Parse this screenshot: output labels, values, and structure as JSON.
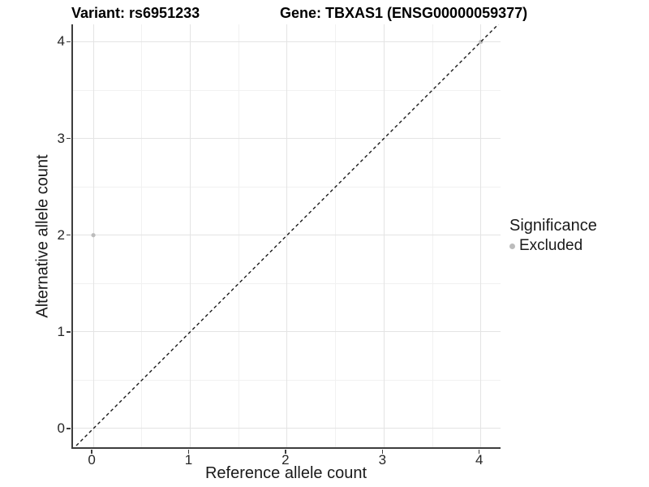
{
  "header": {
    "variant_title": "Variant: rs6951233",
    "gene_title": "Gene: TBXAS1 (ENSG00000059377)"
  },
  "axes": {
    "x_label": "Reference allele count",
    "y_label": "Alternative allele count",
    "x_tick_labels": [
      "0",
      "1",
      "2",
      "3",
      "4"
    ],
    "y_tick_labels": [
      "0",
      "1",
      "2",
      "3",
      "4"
    ]
  },
  "legend": {
    "title": "Significance",
    "items": [
      {
        "label": "Excluded",
        "color": "#bcbcbc"
      }
    ]
  },
  "colors": {
    "axis_line": "#3d3d3d",
    "grid_major": "#e4e4e4",
    "grid_minor": "#f1f1f1",
    "reference_line": "#1a1a1a",
    "excluded_point": "#bcbcbc"
  },
  "chart_data": {
    "type": "scatter",
    "title": "Variant: rs6951233",
    "title_right": "Gene: TBXAS1 (ENSG00000059377)",
    "xlabel": "Reference allele count",
    "ylabel": "Alternative allele count",
    "xlim": [
      -0.21,
      4.22
    ],
    "ylim": [
      -0.21,
      4.18
    ],
    "x_major_ticks": [
      0,
      1,
      2,
      3,
      4
    ],
    "y_major_ticks": [
      0,
      1,
      2,
      3,
      4
    ],
    "x_minor_ticks": [
      0.5,
      1.5,
      2.5,
      3.5
    ],
    "y_minor_ticks": [
      0.5,
      1.5,
      2.5,
      3.5
    ],
    "grid": "major+minor",
    "legend_position": "right",
    "series": [
      {
        "name": "Excluded",
        "color": "#bcbcbc",
        "marker": "circle",
        "points": [
          {
            "x": 0,
            "y": 2
          },
          {
            "x": 4,
            "y": 4
          }
        ]
      }
    ],
    "reference_line": {
      "type": "identity",
      "slope": 1,
      "intercept": 0,
      "style": "dashed",
      "color": "#1a1a1a"
    }
  }
}
